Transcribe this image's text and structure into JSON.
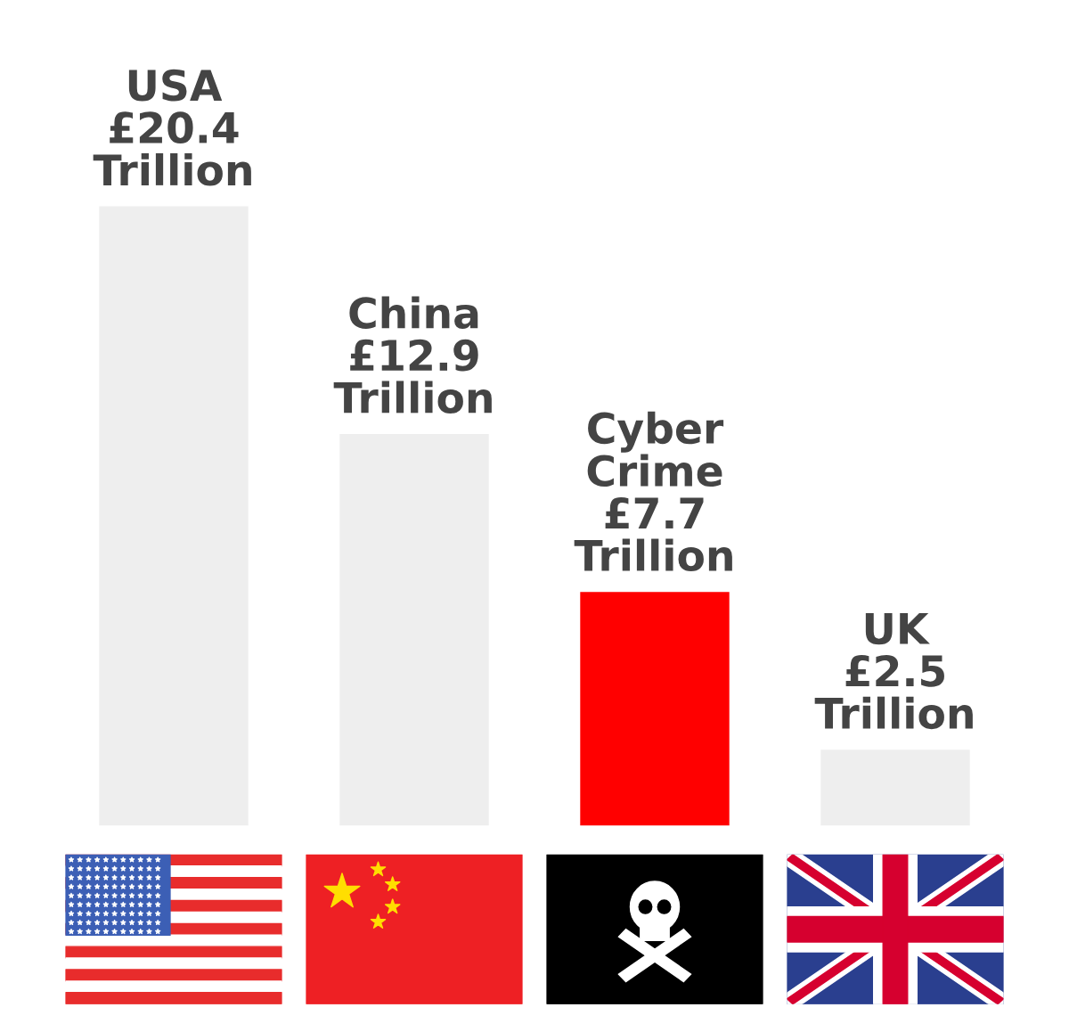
{
  "chart_data": {
    "type": "bar",
    "categories": [
      null,
      null,
      null,
      null
    ],
    "values": [
      20.4,
      12.9,
      7.7,
      2.5
    ],
    "colors": [
      "#eeeeee",
      "#eeeeee",
      "#ff0000",
      "#eeeeee"
    ],
    "value_labels": [
      "USA\n£20.4\nTrillion",
      "China\n£12.9\nTrillion",
      "Cyber\nCrime\n£7.7\nTrillion",
      "UK\n£2.5\nTrillion"
    ],
    "grid": false,
    "legend": false
  }
}
